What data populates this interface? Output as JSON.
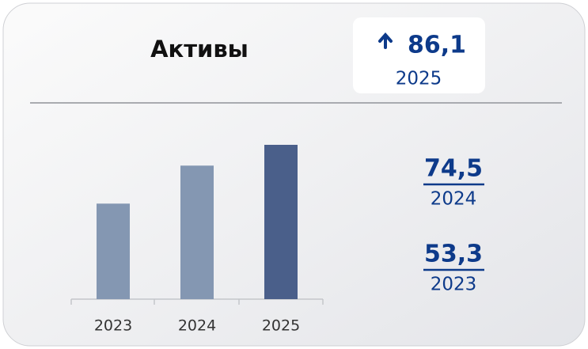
{
  "chart_data": {
    "type": "bar",
    "title": "Активы",
    "categories": [
      "2023",
      "2024",
      "2025"
    ],
    "values": [
      53.3,
      74.5,
      86.1
    ],
    "value_labels": [
      "53,3",
      "74,5",
      "86,1"
    ],
    "colors": [
      "#8497b2",
      "#8497b2",
      "#4a5f8a"
    ]
  }
}
